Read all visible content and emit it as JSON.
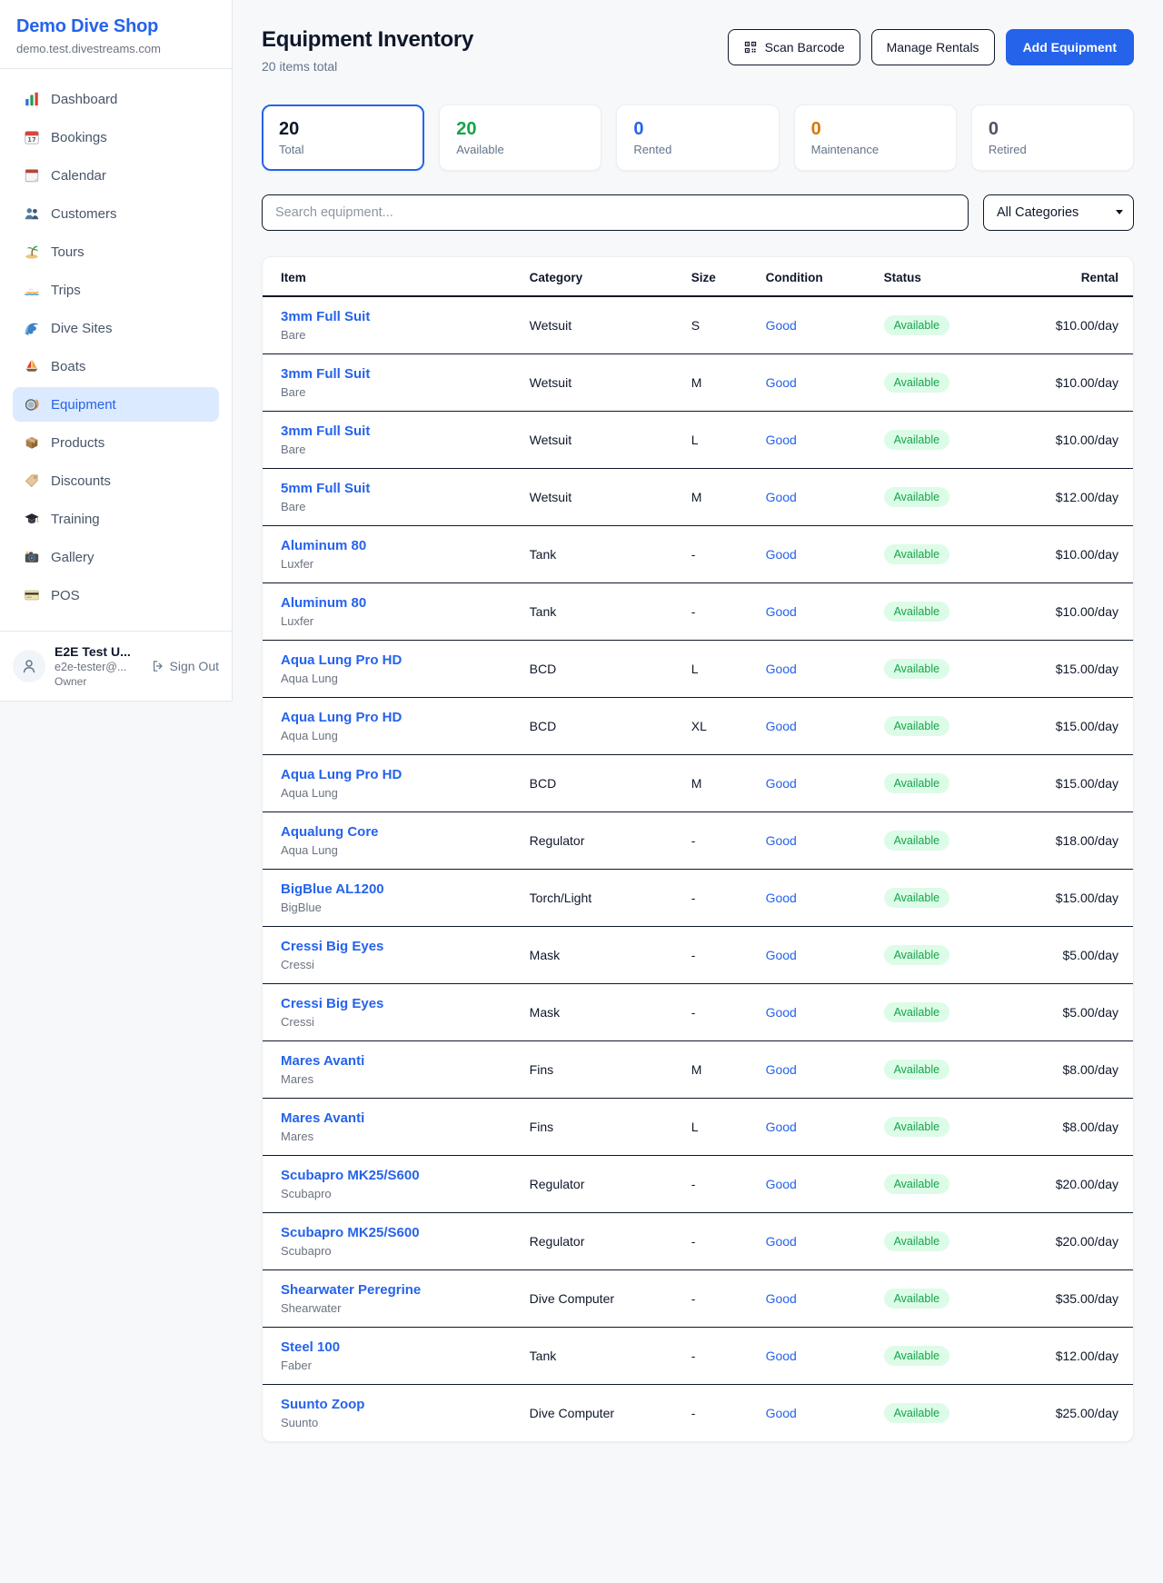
{
  "brand": {
    "name": "Demo Dive Shop",
    "domain": "demo.test.divestreams.com"
  },
  "sidebar": {
    "items": [
      {
        "label": "Dashboard",
        "icon": "bar-chart-icon"
      },
      {
        "label": "Bookings",
        "icon": "calendar-17-icon"
      },
      {
        "label": "Calendar",
        "icon": "tear-calendar-icon"
      },
      {
        "label": "Customers",
        "icon": "people-icon"
      },
      {
        "label": "Tours",
        "icon": "palm-island-icon"
      },
      {
        "label": "Trips",
        "icon": "speedboat-icon"
      },
      {
        "label": "Dive Sites",
        "icon": "wave-icon"
      },
      {
        "label": "Boats",
        "icon": "sailboat-icon"
      },
      {
        "label": "Equipment",
        "icon": "dive-mask-icon"
      },
      {
        "label": "Products",
        "icon": "package-icon"
      },
      {
        "label": "Discounts",
        "icon": "tag-icon"
      },
      {
        "label": "Training",
        "icon": "grad-cap-icon"
      },
      {
        "label": "Gallery",
        "icon": "camera-icon"
      },
      {
        "label": "POS",
        "icon": "credit-card-icon"
      }
    ],
    "active_label": "Equipment"
  },
  "user": {
    "name": "E2E Test U...",
    "email": "e2e-tester@...",
    "role": "Owner",
    "sign_out_label": "Sign Out"
  },
  "header": {
    "title": "Equipment Inventory",
    "subtitle": "20 items total",
    "scan_button": "Scan Barcode",
    "manage_button": "Manage Rentals",
    "add_button": "Add Equipment"
  },
  "stats": [
    {
      "value": "20",
      "label": "Total",
      "color": "#0f172a",
      "active": true
    },
    {
      "value": "20",
      "label": "Available",
      "color": "#16a34a",
      "active": false
    },
    {
      "value": "0",
      "label": "Rented",
      "color": "#2563eb",
      "active": false
    },
    {
      "value": "0",
      "label": "Maintenance",
      "color": "#d97706",
      "active": false
    },
    {
      "value": "0",
      "label": "Retired",
      "color": "#4b5563",
      "active": false
    }
  ],
  "filters": {
    "search_placeholder": "Search equipment...",
    "category_selected": "All Categories"
  },
  "table": {
    "columns": [
      "Item",
      "Category",
      "Size",
      "Condition",
      "Status",
      "Rental"
    ],
    "rows": [
      {
        "name": "3mm Full Suit",
        "brand": "Bare",
        "category": "Wetsuit",
        "size": "S",
        "condition": "Good",
        "status": "Available",
        "rental": "$10.00/day"
      },
      {
        "name": "3mm Full Suit",
        "brand": "Bare",
        "category": "Wetsuit",
        "size": "M",
        "condition": "Good",
        "status": "Available",
        "rental": "$10.00/day"
      },
      {
        "name": "3mm Full Suit",
        "brand": "Bare",
        "category": "Wetsuit",
        "size": "L",
        "condition": "Good",
        "status": "Available",
        "rental": "$10.00/day"
      },
      {
        "name": "5mm Full Suit",
        "brand": "Bare",
        "category": "Wetsuit",
        "size": "M",
        "condition": "Good",
        "status": "Available",
        "rental": "$12.00/day"
      },
      {
        "name": "Aluminum 80",
        "brand": "Luxfer",
        "category": "Tank",
        "size": "-",
        "condition": "Good",
        "status": "Available",
        "rental": "$10.00/day"
      },
      {
        "name": "Aluminum 80",
        "brand": "Luxfer",
        "category": "Tank",
        "size": "-",
        "condition": "Good",
        "status": "Available",
        "rental": "$10.00/day"
      },
      {
        "name": "Aqua Lung Pro HD",
        "brand": "Aqua Lung",
        "category": "BCD",
        "size": "L",
        "condition": "Good",
        "status": "Available",
        "rental": "$15.00/day"
      },
      {
        "name": "Aqua Lung Pro HD",
        "brand": "Aqua Lung",
        "category": "BCD",
        "size": "XL",
        "condition": "Good",
        "status": "Available",
        "rental": "$15.00/day"
      },
      {
        "name": "Aqua Lung Pro HD",
        "brand": "Aqua Lung",
        "category": "BCD",
        "size": "M",
        "condition": "Good",
        "status": "Available",
        "rental": "$15.00/day"
      },
      {
        "name": "Aqualung Core",
        "brand": "Aqua Lung",
        "category": "Regulator",
        "size": "-",
        "condition": "Good",
        "status": "Available",
        "rental": "$18.00/day"
      },
      {
        "name": "BigBlue AL1200",
        "brand": "BigBlue",
        "category": "Torch/Light",
        "size": "-",
        "condition": "Good",
        "status": "Available",
        "rental": "$15.00/day"
      },
      {
        "name": "Cressi Big Eyes",
        "brand": "Cressi",
        "category": "Mask",
        "size": "-",
        "condition": "Good",
        "status": "Available",
        "rental": "$5.00/day"
      },
      {
        "name": "Cressi Big Eyes",
        "brand": "Cressi",
        "category": "Mask",
        "size": "-",
        "condition": "Good",
        "status": "Available",
        "rental": "$5.00/day"
      },
      {
        "name": "Mares Avanti",
        "brand": "Mares",
        "category": "Fins",
        "size": "M",
        "condition": "Good",
        "status": "Available",
        "rental": "$8.00/day"
      },
      {
        "name": "Mares Avanti",
        "brand": "Mares",
        "category": "Fins",
        "size": "L",
        "condition": "Good",
        "status": "Available",
        "rental": "$8.00/day"
      },
      {
        "name": "Scubapro MK25/S600",
        "brand": "Scubapro",
        "category": "Regulator",
        "size": "-",
        "condition": "Good",
        "status": "Available",
        "rental": "$20.00/day"
      },
      {
        "name": "Scubapro MK25/S600",
        "brand": "Scubapro",
        "category": "Regulator",
        "size": "-",
        "condition": "Good",
        "status": "Available",
        "rental": "$20.00/day"
      },
      {
        "name": "Shearwater Peregrine",
        "brand": "Shearwater",
        "category": "Dive Computer",
        "size": "-",
        "condition": "Good",
        "status": "Available",
        "rental": "$35.00/day"
      },
      {
        "name": "Steel 100",
        "brand": "Faber",
        "category": "Tank",
        "size": "-",
        "condition": "Good",
        "status": "Available",
        "rental": "$12.00/day"
      },
      {
        "name": "Suunto Zoop",
        "brand": "Suunto",
        "category": "Dive Computer",
        "size": "-",
        "condition": "Good",
        "status": "Available",
        "rental": "$25.00/day"
      }
    ]
  },
  "colors": {
    "accent": "#2563eb",
    "accent_bg": "#dbeafe",
    "success": "#16a34a",
    "success_bg": "#dcfce7",
    "warning": "#d97706",
    "neutral": "#4b5563",
    "border_dark": "#0f172a",
    "border_light": "#e5e7eb"
  }
}
